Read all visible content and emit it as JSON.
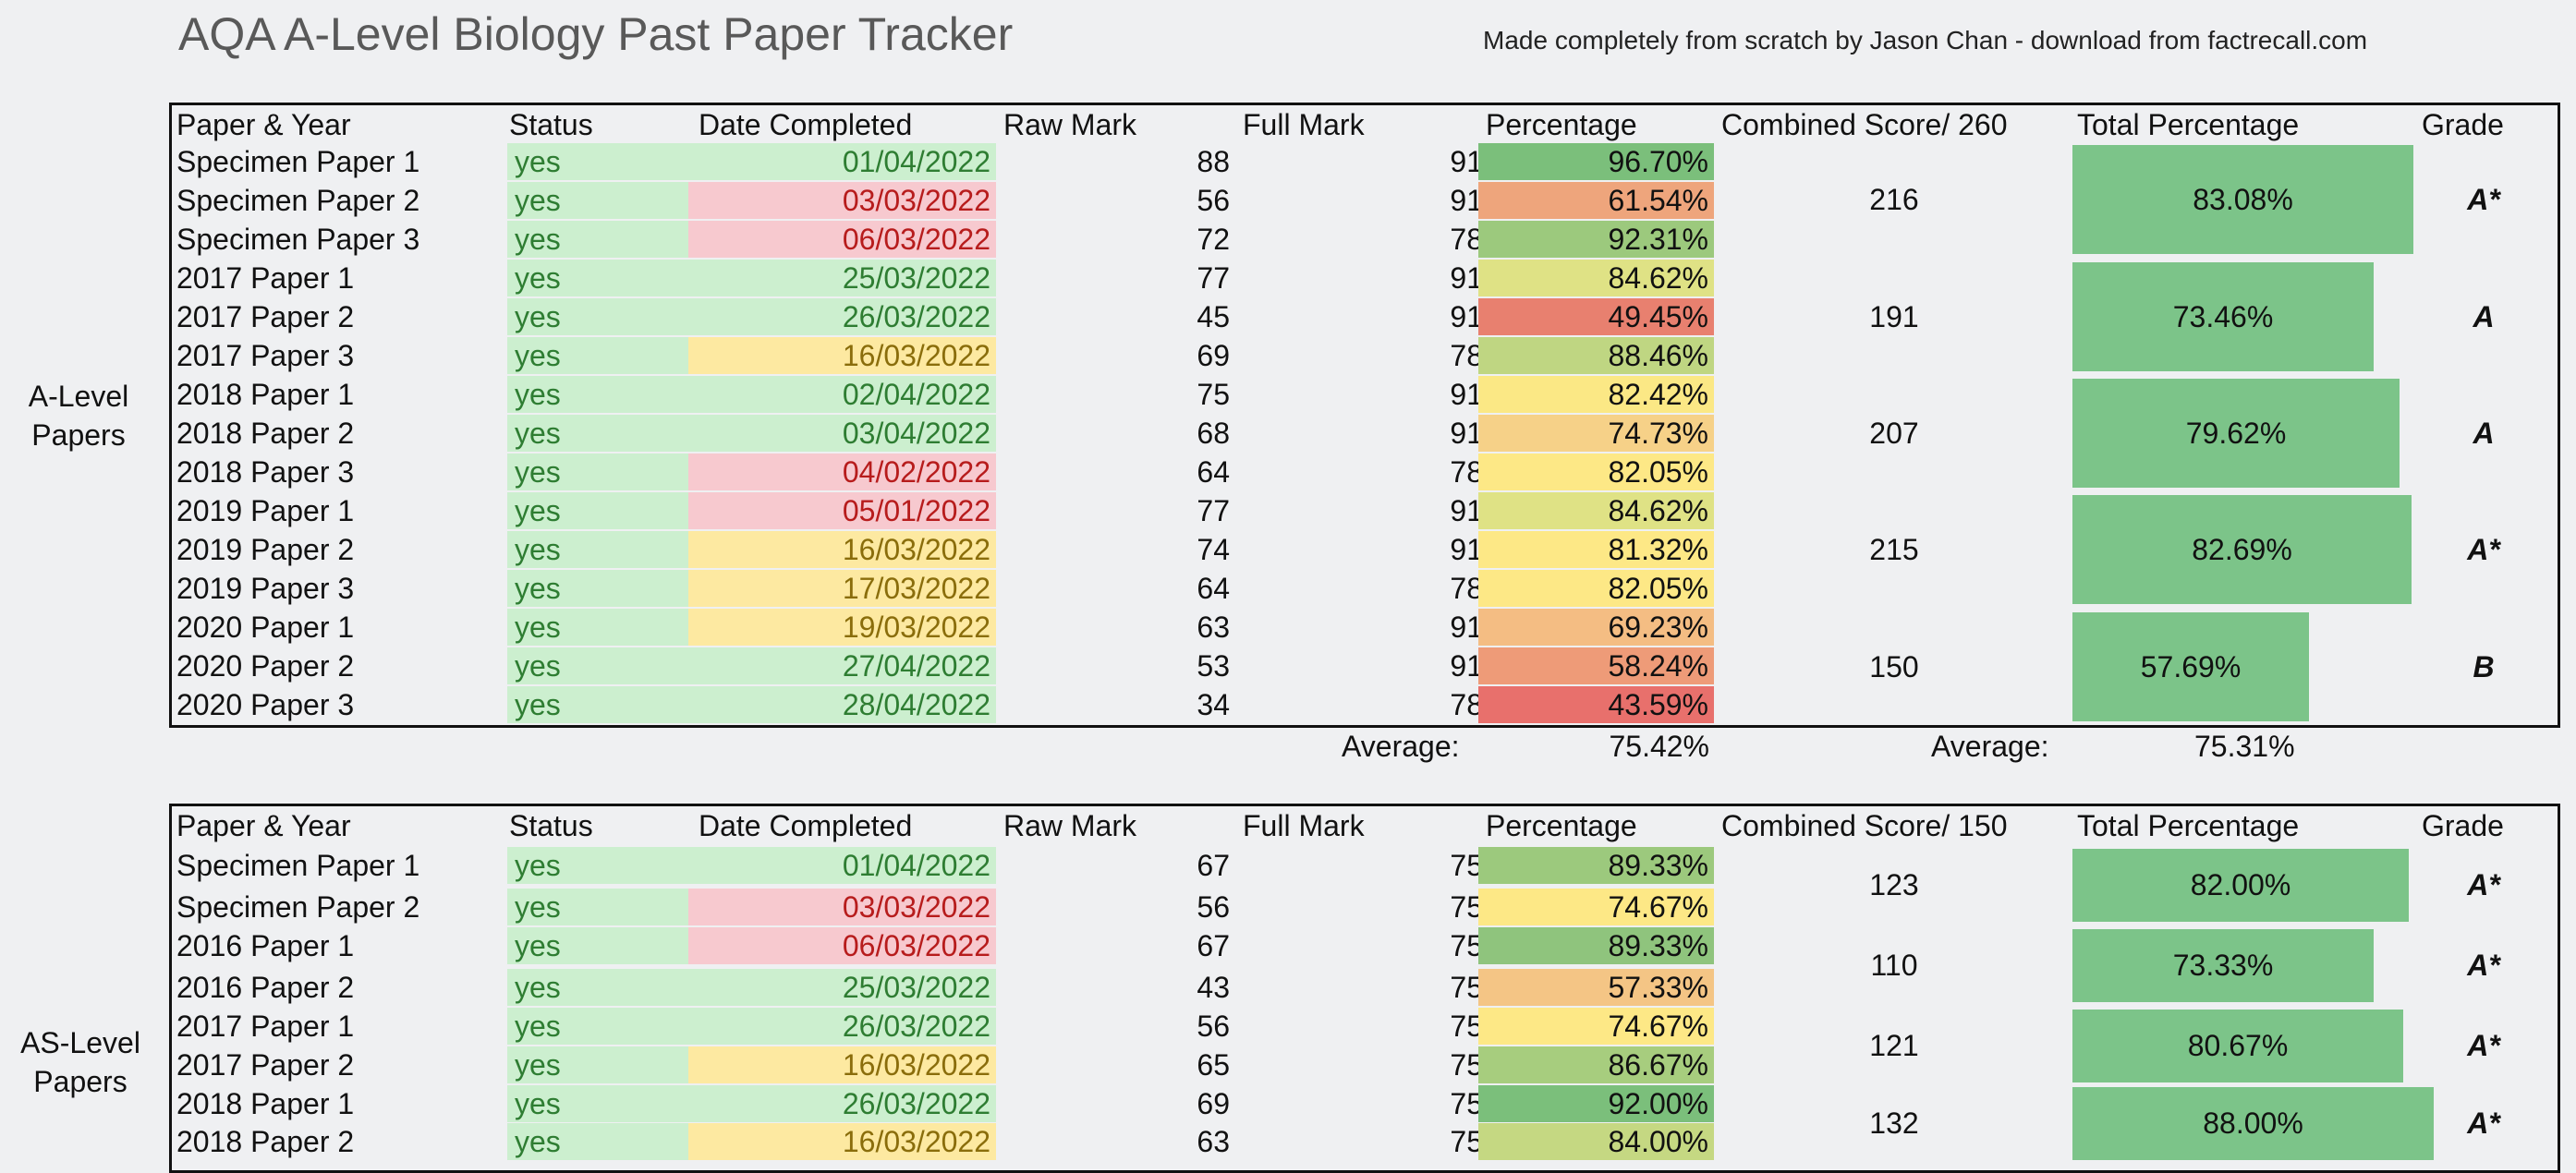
{
  "title": "AQA A-Level Biology Past Paper Tracker",
  "credit": "Made completely from scratch by Jason Chan - download from factrecall.com",
  "colors": {
    "status_green_text": "#2e7d32",
    "date_green_bg": "#ccefcf",
    "date_red_bg": "#f7c9cf",
    "date_amber_bg": "#fde9a1",
    "total_bar": "#7cc489"
  },
  "a_level": {
    "label": "A-Level Papers",
    "headers": {
      "paper": "Paper & Year",
      "status": "Status",
      "date": "Date Completed",
      "raw": "Raw Mark",
      "full": "Full Mark",
      "pct": "Percentage",
      "combined": "Combined Score/ 260",
      "total": "Total Percentage",
      "grade": "Grade"
    },
    "rows": [
      {
        "paper": "Specimen Paper 1",
        "status": "yes",
        "date": "01/04/2022",
        "date_state": "green",
        "raw": "88",
        "full": "91",
        "pct": "96.70%",
        "pct_color": "#7bbf7b"
      },
      {
        "paper": "Specimen Paper 2",
        "status": "yes",
        "date": "03/03/2022",
        "date_state": "red",
        "raw": "56",
        "full": "91",
        "pct": "61.54%",
        "pct_color": "#eea57c"
      },
      {
        "paper": "Specimen Paper 3",
        "status": "yes",
        "date": "06/03/2022",
        "date_state": "red",
        "raw": "72",
        "full": "78",
        "pct": "92.31%",
        "pct_color": "#9cc97d"
      },
      {
        "paper": "2017 Paper 1",
        "status": "yes",
        "date": "25/03/2022",
        "date_state": "green",
        "raw": "77",
        "full": "91",
        "pct": "84.62%",
        "pct_color": "#dfe285"
      },
      {
        "paper": "2017 Paper 2",
        "status": "yes",
        "date": "26/03/2022",
        "date_state": "green",
        "raw": "45",
        "full": "91",
        "pct": "49.45%",
        "pct_color": "#e8806f"
      },
      {
        "paper": "2017 Paper 3",
        "status": "yes",
        "date": "16/03/2022",
        "date_state": "amber",
        "raw": "69",
        "full": "78",
        "pct": "88.46%",
        "pct_color": "#bfd682"
      },
      {
        "paper": "2018 Paper 1",
        "status": "yes",
        "date": "02/04/2022",
        "date_state": "green",
        "raw": "75",
        "full": "91",
        "pct": "82.42%",
        "pct_color": "#fbe885"
      },
      {
        "paper": "2018 Paper 2",
        "status": "yes",
        "date": "03/04/2022",
        "date_state": "green",
        "raw": "68",
        "full": "91",
        "pct": "74.73%",
        "pct_color": "#f6d188"
      },
      {
        "paper": "2018 Paper 3",
        "status": "yes",
        "date": "04/02/2022",
        "date_state": "red",
        "raw": "64",
        "full": "78",
        "pct": "82.05%",
        "pct_color": "#fde886"
      },
      {
        "paper": "2019 Paper 1",
        "status": "yes",
        "date": "05/01/2022",
        "date_state": "red",
        "raw": "77",
        "full": "91",
        "pct": "84.62%",
        "pct_color": "#dfe285"
      },
      {
        "paper": "2019 Paper 2",
        "status": "yes",
        "date": "16/03/2022",
        "date_state": "amber",
        "raw": "74",
        "full": "91",
        "pct": "81.32%",
        "pct_color": "#fde886"
      },
      {
        "paper": "2019 Paper 3",
        "status": "yes",
        "date": "17/03/2022",
        "date_state": "amber",
        "raw": "64",
        "full": "78",
        "pct": "82.05%",
        "pct_color": "#fde886"
      },
      {
        "paper": "2020 Paper 1",
        "status": "yes",
        "date": "19/03/2022",
        "date_state": "amber",
        "raw": "63",
        "full": "91",
        "pct": "69.23%",
        "pct_color": "#f4bd83"
      },
      {
        "paper": "2020 Paper 2",
        "status": "yes",
        "date": "27/04/2022",
        "date_state": "green",
        "raw": "53",
        "full": "91",
        "pct": "58.24%",
        "pct_color": "#ee9b78"
      },
      {
        "paper": "2020 Paper 3",
        "status": "yes",
        "date": "28/04/2022",
        "date_state": "green",
        "raw": "34",
        "full": "78",
        "pct": "43.59%",
        "pct_color": "#e8706c"
      }
    ],
    "groups": [
      {
        "combined": "216",
        "total": "83.08%",
        "total_value": 83.08,
        "grade": "A*"
      },
      {
        "combined": "191",
        "total": "73.46%",
        "total_value": 73.46,
        "grade": "A"
      },
      {
        "combined": "207",
        "total": "79.62%",
        "total_value": 79.62,
        "grade": "A"
      },
      {
        "combined": "215",
        "total": "82.69%",
        "total_value": 82.69,
        "grade": "A*"
      },
      {
        "combined": "150",
        "total": "57.69%",
        "total_value": 57.69,
        "grade": "B"
      }
    ],
    "avg_label_1": "Average:",
    "avg_value_1": "75.42%",
    "avg_label_2": "Average:",
    "avg_value_2": "75.31%"
  },
  "as_level": {
    "label": "AS-Level Papers",
    "headers": {
      "paper": "Paper & Year",
      "status": "Status",
      "date": "Date Completed",
      "raw": "Raw Mark",
      "full": "Full Mark",
      "pct": "Percentage",
      "combined": "Combined Score/ 150",
      "total": "Total Percentage",
      "grade": "Grade"
    },
    "rows": [
      {
        "paper": "Specimen Paper 1",
        "status": "yes",
        "date": "01/04/2022",
        "date_state": "green",
        "raw": "67",
        "full": "75",
        "pct": "89.33%",
        "pct_color": "#9cc97d"
      },
      {
        "paper": "Specimen Paper 2",
        "status": "yes",
        "date": "03/03/2022",
        "date_state": "red",
        "raw": "56",
        "full": "75",
        "pct": "74.67%",
        "pct_color": "#fde886"
      },
      {
        "paper": "2016 Paper 1",
        "status": "yes",
        "date": "06/03/2022",
        "date_state": "red",
        "raw": "67",
        "full": "75",
        "pct": "89.33%",
        "pct_color": "#8fc47d"
      },
      {
        "paper": "2016 Paper 2",
        "status": "yes",
        "date": "25/03/2022",
        "date_state": "green",
        "raw": "43",
        "full": "75",
        "pct": "57.33%",
        "pct_color": "#f4c585"
      },
      {
        "paper": "2017 Paper 1",
        "status": "yes",
        "date": "26/03/2022",
        "date_state": "green",
        "raw": "56",
        "full": "75",
        "pct": "74.67%",
        "pct_color": "#fde886"
      },
      {
        "paper": "2017 Paper 2",
        "status": "yes",
        "date": "16/03/2022",
        "date_state": "amber",
        "raw": "65",
        "full": "75",
        "pct": "86.67%",
        "pct_color": "#a7cd7e"
      },
      {
        "paper": "2018 Paper 1",
        "status": "yes",
        "date": "26/03/2022",
        "date_state": "green",
        "raw": "69",
        "full": "75",
        "pct": "92.00%",
        "pct_color": "#7bbf7b"
      },
      {
        "paper": "2018 Paper 2",
        "status": "yes",
        "date": "16/03/2022",
        "date_state": "amber",
        "raw": "63",
        "full": "75",
        "pct": "84.00%",
        "pct_color": "#c5d882"
      }
    ],
    "groups": [
      {
        "combined": "123",
        "total": "82.00%",
        "total_value": 82.0,
        "grade": "A*"
      },
      {
        "combined": "110",
        "total": "73.33%",
        "total_value": 73.33,
        "grade": "A*"
      },
      {
        "combined": "121",
        "total": "80.67%",
        "total_value": 80.67,
        "grade": "A*"
      },
      {
        "combined": "132",
        "total": "88.00%",
        "total_value": 88.0,
        "grade": "A*"
      }
    ]
  }
}
